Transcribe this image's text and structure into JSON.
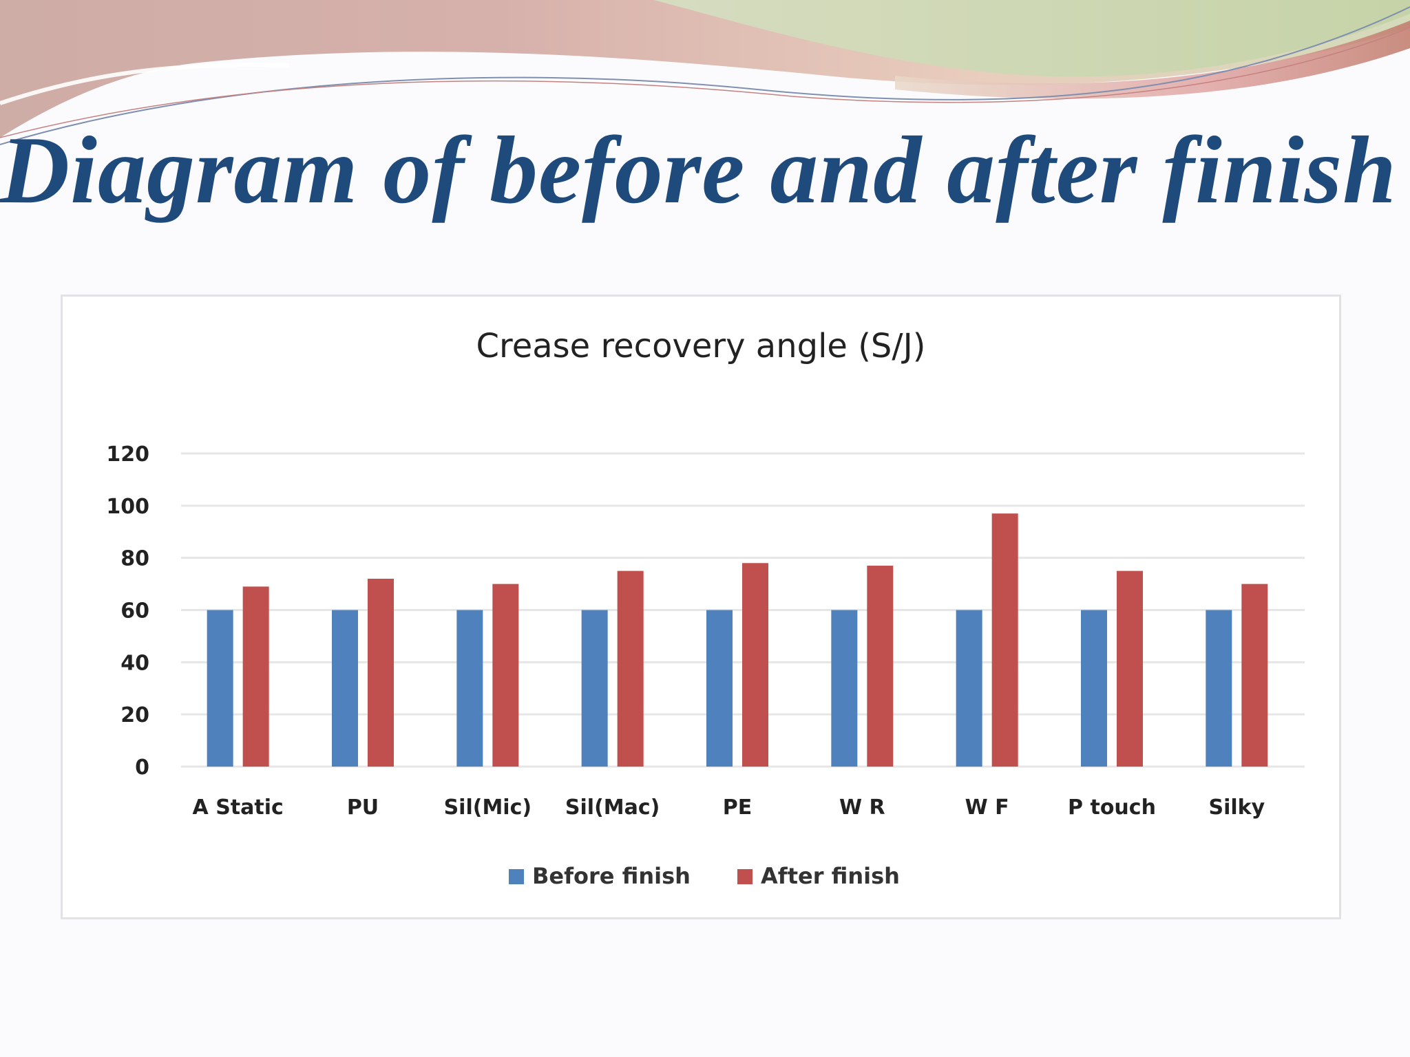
{
  "slide": {
    "title": "Diagram of before and after finish"
  },
  "colors": {
    "title": "#1f4a7c",
    "before": "#4f81bd",
    "after": "#c0504d",
    "grid": "#e6e6e6"
  },
  "chart_data": {
    "type": "bar",
    "title": "Crease recovery angle (S/J)",
    "xlabel": "",
    "ylabel": "",
    "ylim": [
      0,
      120
    ],
    "yticks": [
      0,
      20,
      40,
      60,
      80,
      100,
      120
    ],
    "grid": true,
    "legend_position": "bottom",
    "categories": [
      "A Static",
      "PU",
      "Sil(Mic)",
      "Sil(Mac)",
      "PE",
      "W R",
      "W F",
      "P touch",
      "Silky"
    ],
    "series": [
      {
        "name": "Before finish",
        "color": "#4f81bd",
        "values": [
          60,
          60,
          60,
          60,
          60,
          60,
          60,
          60,
          60
        ]
      },
      {
        "name": "After finish",
        "color": "#c0504d",
        "values": [
          69,
          72,
          70,
          75,
          78,
          77,
          97,
          75,
          70
        ]
      }
    ]
  }
}
